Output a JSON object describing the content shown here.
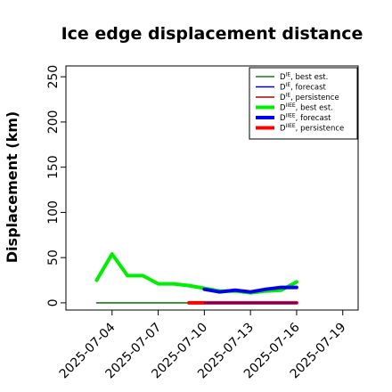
{
  "chart_data": {
    "type": "line",
    "title": "Ice edge displacement distance",
    "xlabel": "",
    "ylabel": "Displacement (km)",
    "ylim": [
      -8,
      262
    ],
    "yticks": [
      0,
      50,
      100,
      150,
      200,
      250
    ],
    "xlim": [
      "2025-07-01",
      "2025-07-20"
    ],
    "xticks": [
      "2025-07-04",
      "2025-07-07",
      "2025-07-10",
      "2025-07-13",
      "2025-07-16",
      "2025-07-19"
    ],
    "highlighted_xtick": "2025-07-10",
    "highlight_color": "#2e8b22",
    "grid": false,
    "legend_position": "top-right",
    "series": [
      {
        "name": "D^IE, best est.",
        "color": "#1a7a1a",
        "thick": false,
        "points": [
          [
            "2025-07-03",
            0
          ],
          [
            "2025-07-04",
            0
          ],
          [
            "2025-07-05",
            0
          ],
          [
            "2025-07-06",
            0
          ],
          [
            "2025-07-07",
            0
          ],
          [
            "2025-07-08",
            0
          ],
          [
            "2025-07-09",
            0
          ],
          [
            "2025-07-10",
            0
          ]
        ]
      },
      {
        "name": "D^IE, forecast",
        "color": "#0000cc",
        "thick": false,
        "points": [
          [
            "2025-07-10",
            0
          ],
          [
            "2025-07-16",
            0
          ]
        ]
      },
      {
        "name": "D^IE, persistence",
        "color": "#b00000",
        "thick": false,
        "points": [
          [
            "2025-07-10",
            0
          ],
          [
            "2025-07-16",
            0
          ]
        ]
      },
      {
        "name": "D^IIEE, best est.",
        "color": "#00ee00",
        "thick": true,
        "points": [
          [
            "2025-07-03",
            25
          ],
          [
            "2025-07-04",
            54
          ],
          [
            "2025-07-05",
            30
          ],
          [
            "2025-07-06",
            30
          ],
          [
            "2025-07-07",
            21
          ],
          [
            "2025-07-08",
            21
          ],
          [
            "2025-07-09",
            19
          ],
          [
            "2025-07-10",
            16
          ],
          [
            "2025-07-11",
            13
          ],
          [
            "2025-07-12",
            13
          ],
          [
            "2025-07-13",
            11
          ],
          [
            "2025-07-14",
            13
          ],
          [
            "2025-07-15",
            14
          ],
          [
            "2025-07-16",
            23
          ]
        ]
      },
      {
        "name": "D^IIEE, forecast",
        "color": "#0000ee",
        "thick": true,
        "points": [
          [
            "2025-07-10",
            15
          ],
          [
            "2025-07-11",
            12
          ],
          [
            "2025-07-12",
            14
          ],
          [
            "2025-07-13",
            12
          ],
          [
            "2025-07-14",
            15
          ],
          [
            "2025-07-15",
            17
          ],
          [
            "2025-07-16",
            17
          ]
        ]
      },
      {
        "name": "D^IIEE, persistence",
        "color": "#ff0000",
        "thick": true,
        "points": [
          [
            "2025-07-09",
            0
          ],
          [
            "2025-07-10",
            0
          ],
          [
            "2025-07-11",
            0
          ],
          [
            "2025-07-12",
            0
          ],
          [
            "2025-07-13",
            0
          ],
          [
            "2025-07-14",
            0
          ],
          [
            "2025-07-15",
            0
          ],
          [
            "2025-07-16",
            0
          ]
        ]
      }
    ],
    "legend_entries": [
      {
        "base": "D",
        "sup": "IE",
        "suffix": ", best est.",
        "color": "#1a7a1a",
        "thick": false
      },
      {
        "base": "D",
        "sup": "IE",
        "suffix": ", forecast",
        "color": "#0000cc",
        "thick": false
      },
      {
        "base": "D",
        "sup": "IE",
        "suffix": ", persistence",
        "color": "#b00000",
        "thick": false
      },
      {
        "base": "D",
        "sup": "IIEE",
        "suffix": ", best est.",
        "color": "#00ee00",
        "thick": true
      },
      {
        "base": "D",
        "sup": "IIEE",
        "suffix": ", forecast",
        "color": "#0000ee",
        "thick": true
      },
      {
        "base": "D",
        "sup": "IIEE",
        "suffix": ", persistence",
        "color": "#ff0000",
        "thick": true
      }
    ]
  }
}
